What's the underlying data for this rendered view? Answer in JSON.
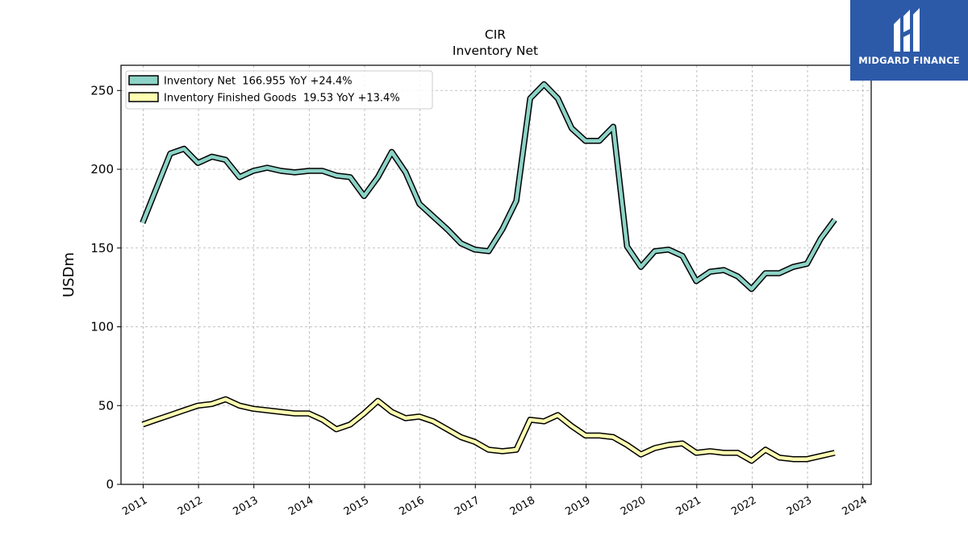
{
  "brand": {
    "name": "MIDGARD FINANCE",
    "bg_color": "#2d5aa8",
    "icon": "midgard-logo-icon"
  },
  "chart_data": {
    "type": "line",
    "title": "CIR",
    "subtitle": "Inventory Net",
    "xlabel": "",
    "ylabel": "USDm",
    "xlim": [
      2010.6,
      2024.15
    ],
    "ylim": [
      0,
      266
    ],
    "x_ticks": [
      "2011",
      "2012",
      "2013",
      "2014",
      "2015",
      "2016",
      "2017",
      "2018",
      "2019",
      "2020",
      "2021",
      "2022",
      "2023",
      "2024"
    ],
    "y_ticks": [
      0,
      50,
      100,
      150,
      200,
      250
    ],
    "grid": true,
    "legend_position": "top-left",
    "series": [
      {
        "name": "Inventory Net  166.955 YoY +24.4%",
        "color": "#8dd3c7",
        "x": [
          2010.99,
          2011.24,
          2011.49,
          2011.74,
          2011.99,
          2012.24,
          2012.49,
          2012.74,
          2012.99,
          2013.24,
          2013.49,
          2013.74,
          2013.99,
          2014.24,
          2014.49,
          2014.74,
          2014.99,
          2015.24,
          2015.49,
          2015.74,
          2015.99,
          2016.24,
          2016.49,
          2016.74,
          2016.99,
          2017.24,
          2017.49,
          2017.74,
          2017.99,
          2018.24,
          2018.49,
          2018.74,
          2018.99,
          2019.24,
          2019.49,
          2019.74,
          2019.99,
          2020.24,
          2020.49,
          2020.74,
          2020.99,
          2021.24,
          2021.49,
          2021.74,
          2021.99,
          2022.24,
          2022.49,
          2022.74,
          2022.99,
          2023.24,
          2023.49
        ],
        "values": [
          166,
          188,
          210,
          213,
          204,
          208,
          206,
          195,
          199,
          201,
          199,
          198,
          199,
          199,
          196,
          195,
          183,
          195,
          211,
          198,
          178,
          170,
          162,
          153,
          149,
          148,
          162,
          180,
          245,
          254,
          245,
          226,
          218,
          218,
          227,
          151,
          138,
          148,
          149,
          145,
          129,
          135,
          136,
          132,
          124,
          134,
          134,
          138,
          140,
          156,
          168
        ]
      },
      {
        "name": "Inventory Finished Goods  19.53 YoY +13.4%",
        "color": "#ffffb3",
        "x": [
          2010.99,
          2011.24,
          2011.49,
          2011.74,
          2011.99,
          2012.24,
          2012.49,
          2012.74,
          2012.99,
          2013.24,
          2013.49,
          2013.74,
          2013.99,
          2014.24,
          2014.49,
          2014.74,
          2014.99,
          2015.24,
          2015.49,
          2015.74,
          2015.99,
          2016.24,
          2016.49,
          2016.74,
          2016.99,
          2017.24,
          2017.49,
          2017.74,
          2017.99,
          2018.24,
          2018.49,
          2018.74,
          2018.99,
          2019.24,
          2019.49,
          2019.74,
          2019.99,
          2020.24,
          2020.49,
          2020.74,
          2020.99,
          2021.24,
          2021.49,
          2021.74,
          2021.99,
          2022.24,
          2022.49,
          2022.74,
          2022.99,
          2023.24,
          2023.49
        ],
        "values": [
          38,
          41,
          44,
          47,
          50,
          51,
          54,
          50,
          48,
          47,
          46,
          45,
          45,
          41,
          35,
          38,
          45,
          53,
          46,
          42,
          43,
          40,
          35,
          30,
          27,
          22,
          21,
          22,
          41,
          40,
          44,
          37,
          31,
          31,
          30,
          25,
          19,
          23,
          25,
          26,
          20,
          21,
          20,
          20,
          15,
          22,
          17,
          16,
          16,
          18,
          20
        ]
      }
    ]
  }
}
